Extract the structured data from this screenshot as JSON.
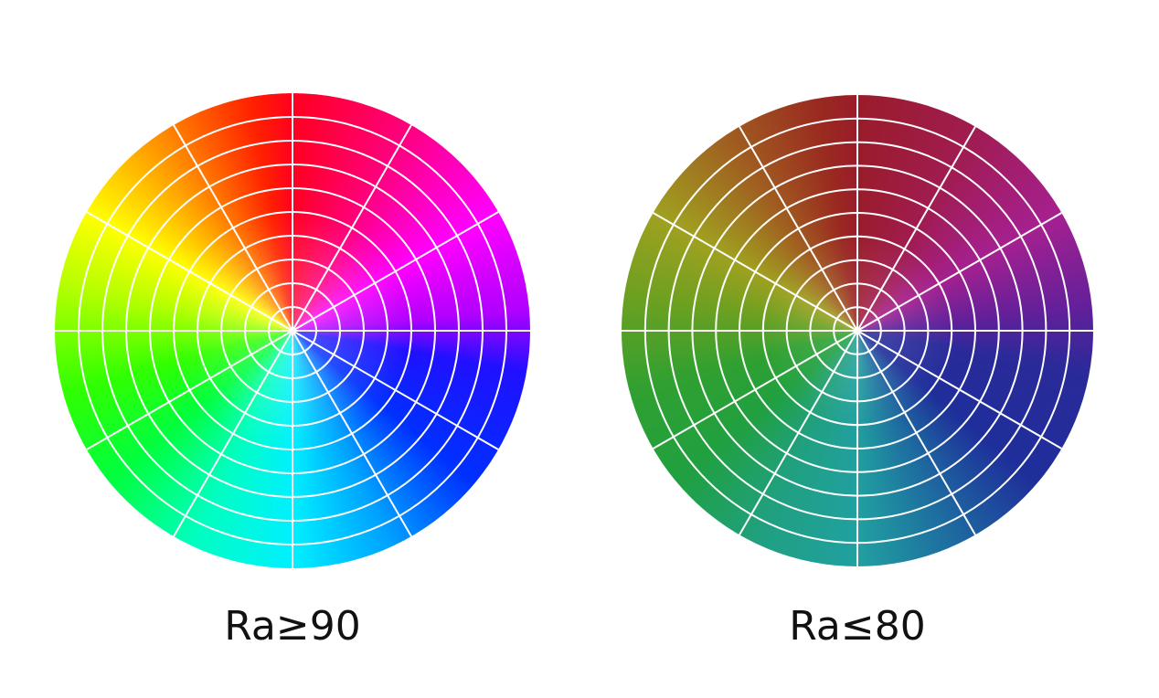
{
  "figures": [
    {
      "label": "Ra≥90"
    },
    {
      "label": "Ra≤80"
    }
  ]
}
